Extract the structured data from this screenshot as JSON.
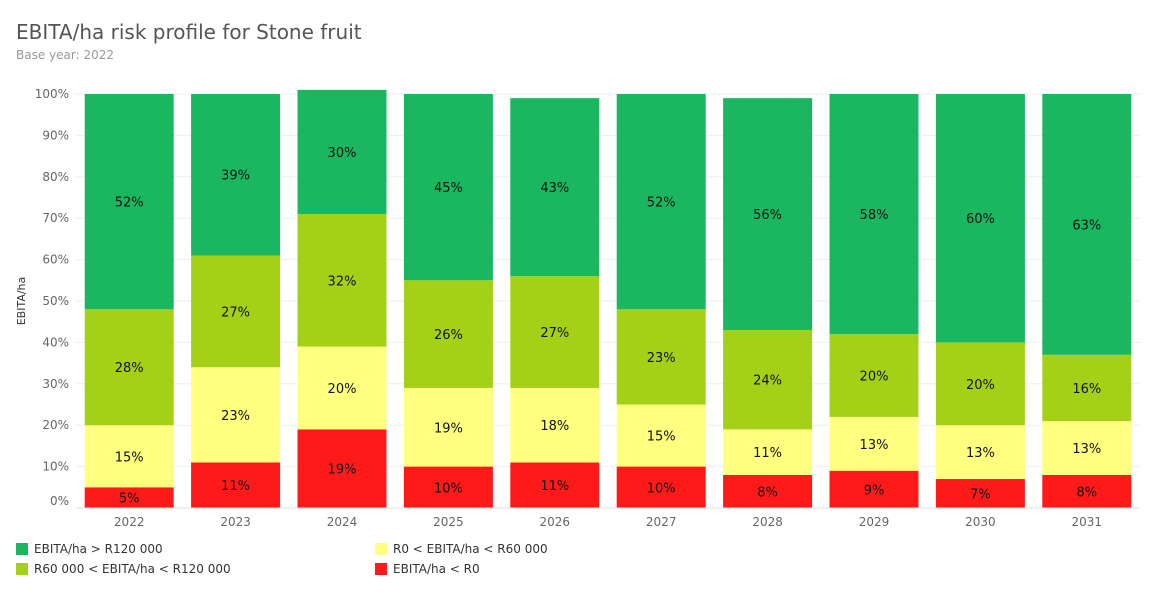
{
  "header": {
    "title": "EBITA/ha risk profile for Stone fruit",
    "subtitle": "Base year: 2022"
  },
  "chart_data": {
    "type": "bar",
    "stacked": true,
    "categories": [
      "2022",
      "2023",
      "2024",
      "2025",
      "2026",
      "2027",
      "2028",
      "2029",
      "2030",
      "2031"
    ],
    "series": [
      {
        "name": "EBITA/ha < R0",
        "color": "#ff1a1a",
        "values": [
          5,
          11,
          19,
          10,
          11,
          10,
          8,
          9,
          7,
          8
        ]
      },
      {
        "name": "R0 < EBITA/ha < R60 000",
        "color": "#ffff80",
        "values": [
          15,
          23,
          20,
          19,
          18,
          15,
          11,
          13,
          13,
          13
        ]
      },
      {
        "name": "R60 000 < EBITA/ha < R120 000",
        "color": "#a4d118",
        "values": [
          28,
          27,
          32,
          26,
          27,
          23,
          24,
          20,
          20,
          16
        ]
      },
      {
        "name": "EBITA/ha > R120 000",
        "color": "#1bb760",
        "values": [
          52,
          39,
          30,
          45,
          43,
          52,
          56,
          58,
          60,
          63
        ]
      }
    ],
    "data_labels": [
      [
        "5%",
        "11%",
        "19%",
        "10%",
        "11%",
        "10%",
        "8%",
        "9%",
        "7%",
        "8%"
      ],
      [
        "15%",
        "23%",
        "20%",
        "19%",
        "18%",
        "15%",
        "11%",
        "13%",
        "13%",
        "13%"
      ],
      [
        "28%",
        "27%",
        "32%",
        "26%",
        "27%",
        "23%",
        "24%",
        "20%",
        "20%",
        "16%"
      ],
      [
        "52%",
        "39%",
        "30%",
        "45%",
        "43%",
        "52%",
        "56%",
        "58%",
        "60%",
        "63%"
      ]
    ],
    "ylabel": "EBITA/ha",
    "xlabel": "",
    "ylim": [
      0,
      100
    ],
    "yticks": [
      "0%",
      "10%",
      "20%",
      "30%",
      "40%",
      "50%",
      "60%",
      "70%",
      "80%",
      "90%",
      "100%"
    ],
    "grid": true,
    "legend_placement": "bottom"
  },
  "legend": [
    {
      "label": "EBITA/ha > R120 000",
      "color": "#1bb760"
    },
    {
      "label": "R0 < EBITA/ha < R60 000",
      "color": "#ffff80"
    },
    {
      "label": "R60 000 < EBITA/ha < R120 000",
      "color": "#a4d118"
    },
    {
      "label": "EBITA/ha < R0",
      "color": "#ff1a1a"
    }
  ]
}
